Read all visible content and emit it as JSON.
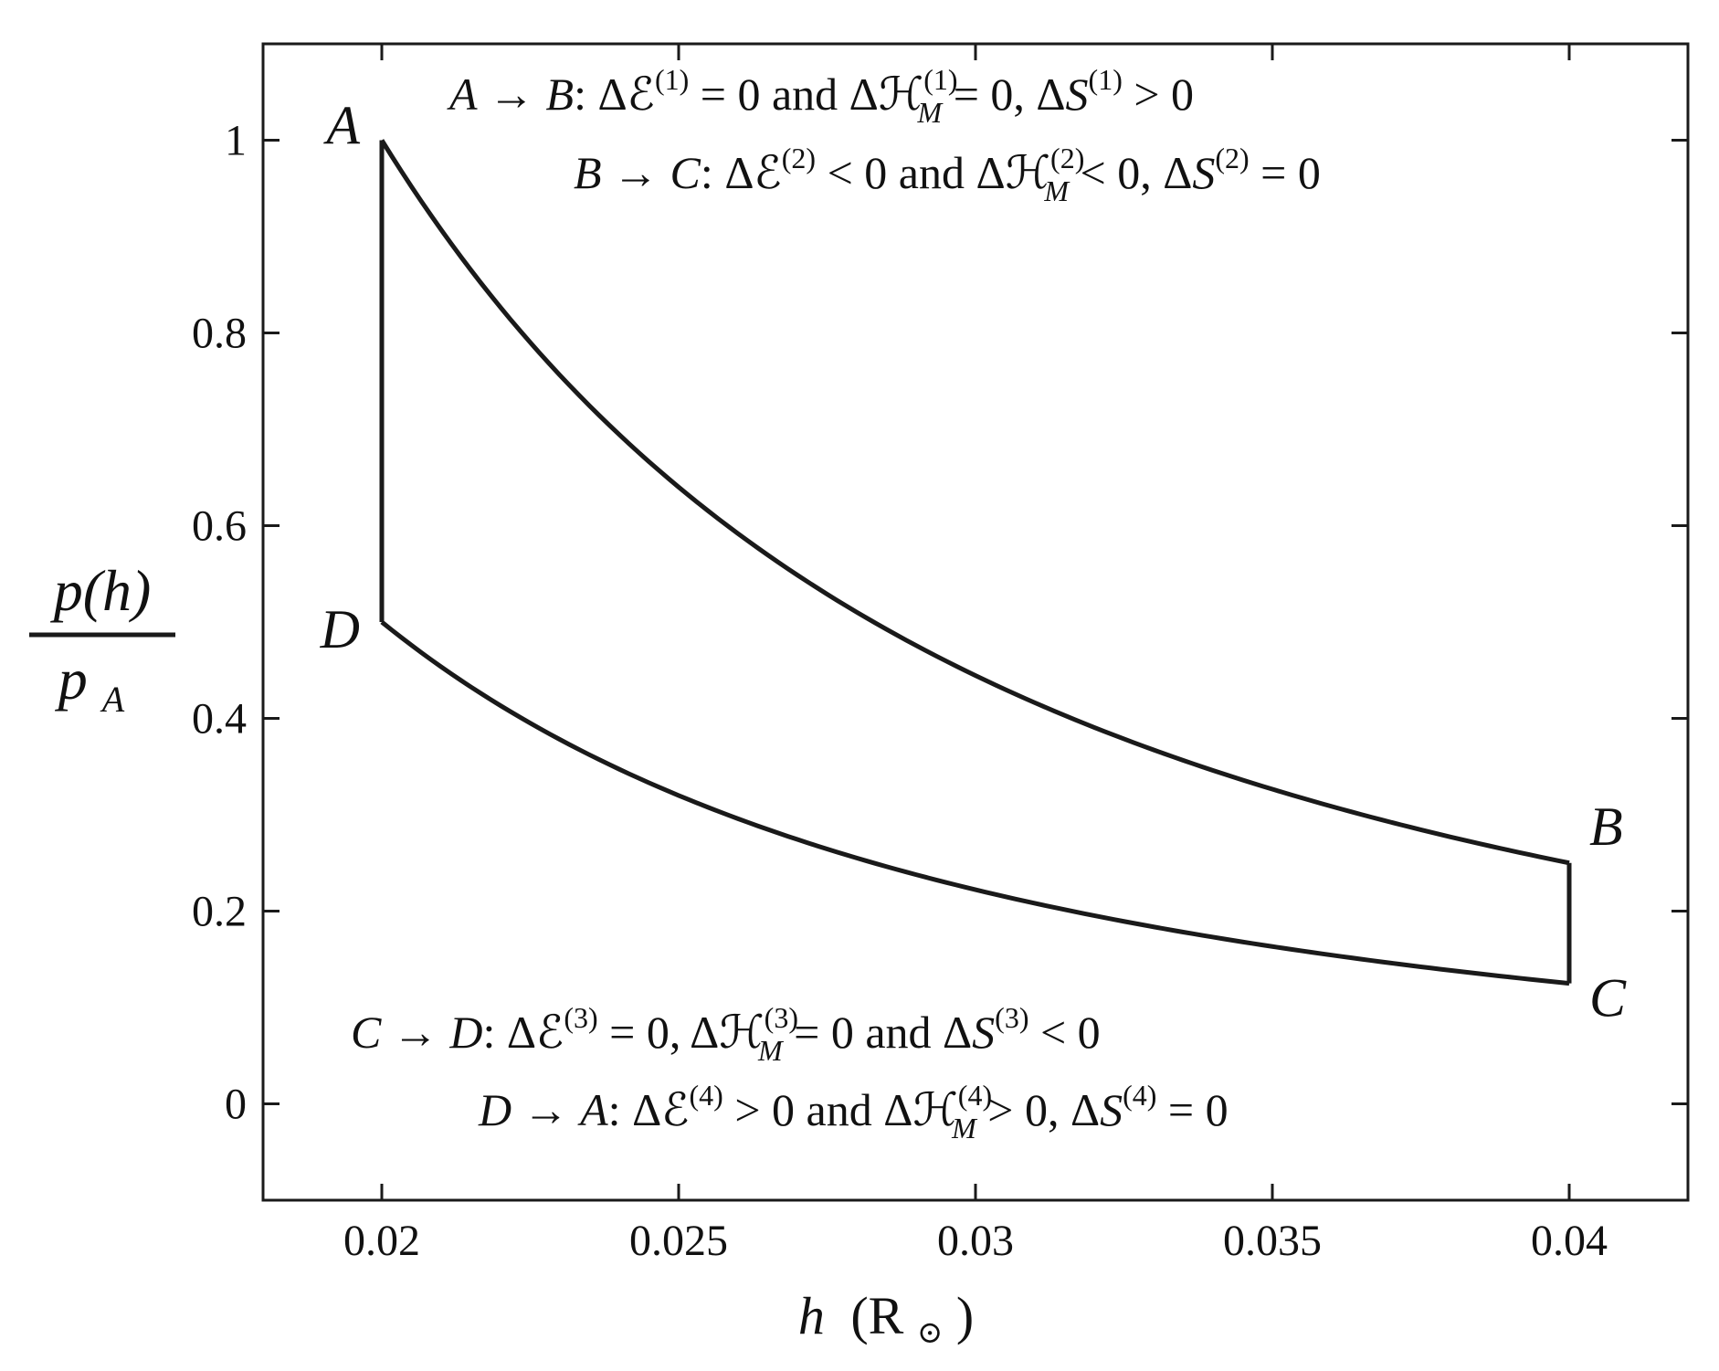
{
  "chart_data": {
    "type": "line",
    "xlabel": {
      "var": "h",
      "unit": "(R",
      "sub": "⊙",
      "close": ")"
    },
    "ylabel": {
      "num": "p(h)",
      "den": "p",
      "den_sub": "A"
    },
    "xlim": [
      0.018,
      0.042
    ],
    "ylim": [
      -0.1,
      1.1
    ],
    "x_ticks": [
      0.02,
      0.025,
      0.03,
      0.035,
      0.04
    ],
    "x_tick_labels": [
      "0.02",
      "0.025",
      "0.03",
      "0.035",
      "0.04"
    ],
    "y_ticks": [
      0,
      0.2,
      0.4,
      0.6,
      0.8,
      1
    ],
    "y_tick_labels": [
      "0",
      "0.2",
      "0.4",
      "0.6",
      "0.8",
      "1"
    ],
    "grid": false,
    "cycle": {
      "points": [
        {
          "label": "A",
          "x": 0.02,
          "y": 1.0
        },
        {
          "label": "B",
          "x": 0.04,
          "y": 0.25
        },
        {
          "label": "C",
          "x": 0.04,
          "y": 0.125
        },
        {
          "label": "D",
          "x": 0.02,
          "y": 0.5
        }
      ],
      "segments": [
        {
          "from": "A",
          "to": "B",
          "law": "p ∝ h^-2"
        },
        {
          "from": "B",
          "to": "C",
          "law": "vertical"
        },
        {
          "from": "C",
          "to": "D",
          "law": "p ∝ h^-2"
        },
        {
          "from": "D",
          "to": "A",
          "law": "vertical"
        }
      ]
    },
    "annotations": [
      {
        "from": "A",
        "to": "B",
        "dE": "ΔE(1) = 0",
        "dH": "ΔH(1)M = 0",
        "dS": "ΔS(1) > 0",
        "text": "A → B: ΔE(1) = 0 and ΔH(1)M = 0, ΔS(1) > 0"
      },
      {
        "from": "B",
        "to": "C",
        "dE": "ΔE(2) < 0",
        "dH": "ΔH(2)M < 0",
        "dS": "ΔS(2) = 0",
        "text": "B → C: ΔE(2) < 0 and ΔH(2)M < 0, ΔS(2) = 0"
      },
      {
        "from": "C",
        "to": "D",
        "dE": "ΔE(3) = 0",
        "dH": "ΔH(3)M = 0",
        "dS": "ΔS(3) < 0",
        "text": "C → D: ΔE(3) = 0, ΔH(3)M = 0 and ΔS(3) < 0"
      },
      {
        "from": "D",
        "to": "A",
        "dE": "ΔE(4) > 0",
        "dH": "ΔH(4)M > 0",
        "dS": "ΔS(4) = 0",
        "text": "D → A: ΔE(4) > 0 and ΔH(4)M > 0, ΔS(4) = 0"
      }
    ]
  },
  "text": {
    "and": "and",
    "arrow": "→",
    "delta": "Δ",
    "script_E": "ℰ",
    "script_H": "ℋ",
    "M_sub": "M",
    "S": "S",
    "sup1": "(1)",
    "sup2": "(2)",
    "sup3": "(3)",
    "sup4": "(4)",
    "eq0": "= 0",
    "lt0": "< 0",
    "gt0": "> 0",
    "colon": ":"
  },
  "colors": {
    "line": "#1a1a1a",
    "axes": "#1a1a1a",
    "background": "#ffffff"
  }
}
